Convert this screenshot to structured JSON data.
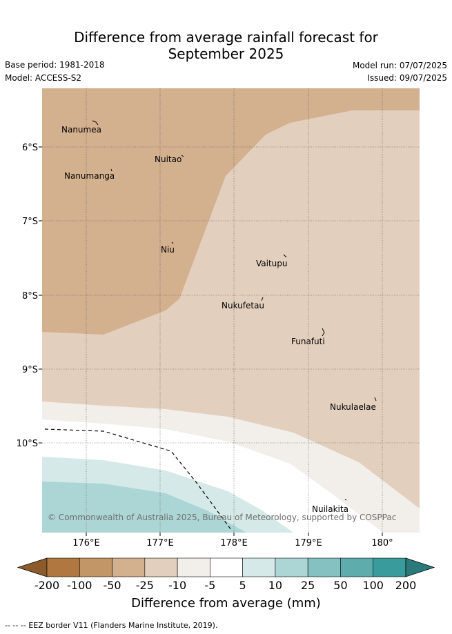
{
  "title_line1": "Difference from average rainfall forecast for",
  "title_line2": "September 2025",
  "base_period": "Base period: 1981-2018",
  "model": "Model: ACCESS-S2",
  "model_run": "Model run: 07/07/2025",
  "issued": "Issued: 09/07/2025",
  "copyright": "© Commonwealth of Australia 2025, Bureau of Meteorology, supported by COSPPac",
  "lat_labels": [
    "6°S",
    "7°S",
    "8°S",
    "9°S",
    "10°S"
  ],
  "lon_labels": [
    "176°E",
    "177°E",
    "178°E",
    "179°E",
    "180°"
  ],
  "places": {
    "nanumea": "Nanumea",
    "nuitao": "Nuitao",
    "nanumanga": "Nanumanga",
    "niu": "Niu",
    "vaitupu": "Vaitupu",
    "nukufetau": "Nukufetau",
    "funafuti": "Funafuti",
    "nukulaelae": "Nukulaelae",
    "nuilakita": "Nuilakita"
  },
  "colorbar": {
    "labels": [
      "-200",
      "-100",
      "-50",
      "-25",
      "-10",
      "-5",
      "5",
      "10",
      "25",
      "50",
      "100",
      "200"
    ],
    "colors": [
      "#8c5a2b",
      "#b07840",
      "#c39668",
      "#d3b08e",
      "#e3cfbd",
      "#f2eee9",
      "#ffffff",
      "#d4e9e8",
      "#acd6d5",
      "#86c1c1",
      "#5eacac",
      "#3a9b9c",
      "#2a7a7c"
    ],
    "title": "Difference from average (mm)"
  },
  "footnote": "-- -- -- EEZ border V11 (Flanders Marine Institute, 2019)."
}
